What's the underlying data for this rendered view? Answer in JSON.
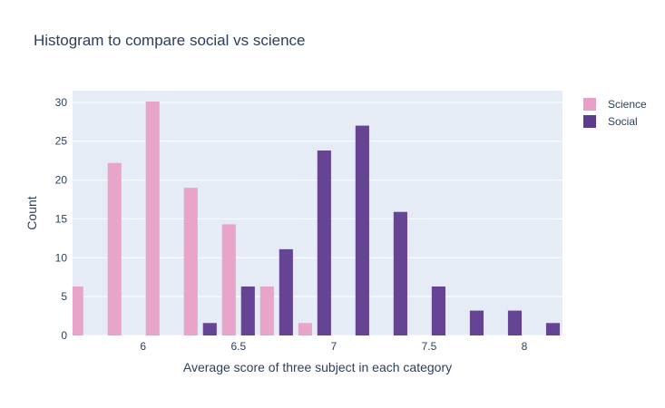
{
  "chart_data": {
    "type": "bar",
    "title": "Histogram to compare social vs science",
    "xlabel": "Average score of three subject in each category",
    "ylabel": "Count",
    "xlim": [
      5.63,
      8.2
    ],
    "ylim": [
      0,
      31.5
    ],
    "x_ticks": [
      6,
      6.5,
      7,
      7.5,
      8
    ],
    "x_tick_labels": [
      "6",
      "6.5",
      "7",
      "7.5",
      "8"
    ],
    "y_ticks": [
      0,
      5,
      10,
      15,
      20,
      25,
      30
    ],
    "y_tick_labels": [
      "0",
      "5",
      "10",
      "15",
      "20",
      "25",
      "30"
    ],
    "bin_width": 0.2,
    "grid": true,
    "legend_position": "top-right",
    "series": [
      {
        "name": "Science",
        "color": "#e8a0c6",
        "x": [
          5.65,
          5.85,
          6.05,
          6.25,
          6.45,
          6.65,
          6.85
        ],
        "values": [
          6.3,
          22.2,
          30.1,
          19.0,
          14.3,
          6.3,
          1.6
        ]
      },
      {
        "name": "Social",
        "color": "#5e3b8e",
        "x": [
          6.35,
          6.55,
          6.75,
          6.95,
          7.15,
          7.35,
          7.55,
          7.75,
          7.95,
          8.15
        ],
        "values": [
          1.6,
          6.3,
          11.1,
          23.8,
          27.0,
          15.9,
          6.3,
          3.2,
          3.2,
          1.6
        ]
      }
    ]
  }
}
